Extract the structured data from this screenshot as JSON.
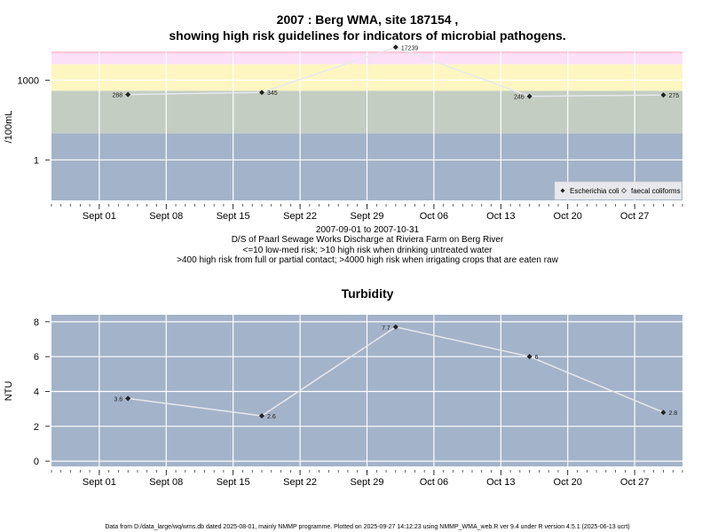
{
  "chart_data": [
    {
      "type": "line",
      "title": "2007 : Berg WMA, site 187154 ,",
      "subtitle": "showing high risk guidelines for indicators of microbial pathogens.",
      "ylabel": "/100mL",
      "y_scale": "log",
      "ylim": [
        0.03,
        12000
      ],
      "xlim": [
        "2007-08-27",
        "2007-11-01"
      ],
      "x_tick_labels": [
        "Sept 01",
        "Sept 08",
        "Sept 15",
        "Sept 22",
        "Sept 29",
        "Oct 06",
        "Oct 13",
        "Oct 20",
        "Oct 27"
      ],
      "x_ticks": [
        "2007-09-01",
        "2007-09-08",
        "2007-09-15",
        "2007-09-22",
        "2007-09-29",
        "2007-10-06",
        "2007-10-13",
        "2007-10-20",
        "2007-10-27"
      ],
      "y_tick_labels": [
        "1",
        "1000"
      ],
      "y_ticks": [
        1,
        1000
      ],
      "risk_bands": [
        {
          "from": 0.03,
          "to": 10,
          "color": "#a3b3c9"
        },
        {
          "from": 10,
          "to": 400,
          "color": "#c3cdc2"
        },
        {
          "from": 400,
          "to": 4000,
          "color": "#fdf6c1"
        },
        {
          "from": 4000,
          "to": 10000,
          "color": "#fce0f8"
        },
        {
          "from": 10000,
          "to": 12000,
          "color": "#fbc7d6"
        }
      ],
      "series": [
        {
          "name": "Escherichia coli",
          "marker": "filled-diamond",
          "color": "#e8e8ec",
          "points": [
            {
              "x": "2007-09-04",
              "y": 288,
              "label": "288"
            },
            {
              "x": "2007-09-18",
              "y": 345,
              "label": "345"
            },
            {
              "x": "2007-10-02",
              "y": 17239,
              "label": "17239"
            },
            {
              "x": "2007-10-16",
              "y": 246,
              "label": "246"
            },
            {
              "x": "2007-10-30",
              "y": 275,
              "label": "275"
            }
          ]
        }
      ],
      "legend": {
        "position": "bottom-right",
        "entries": [
          {
            "label": "Escherichia coli",
            "marker": "filled-diamond",
            "italic": true
          },
          {
            "label": "faecal coliforms",
            "marker": "open-diamond",
            "italic": false
          }
        ]
      },
      "caption": [
        "2007-09-01 to 2007-10-31",
        "D/S of Paarl Sewage Works Discharge at Riviera Farm on Berg River",
        "<=10 low-med risk; >10 high risk when drinking untreated water",
        ">400 high risk from full or partial contact; >4000 high risk when irrigating crops that are eaten raw"
      ]
    },
    {
      "type": "line",
      "title": "Turbidity",
      "ylabel": "NTU",
      "ylim": [
        -0.3,
        8.4
      ],
      "xlim": [
        "2007-08-27",
        "2007-11-01"
      ],
      "x_tick_labels": [
        "Sept 01",
        "Sept 08",
        "Sept 15",
        "Sept 22",
        "Sept 29",
        "Oct 06",
        "Oct 13",
        "Oct 20",
        "Oct 27"
      ],
      "x_ticks": [
        "2007-09-01",
        "2007-09-08",
        "2007-09-15",
        "2007-09-22",
        "2007-09-29",
        "2007-10-06",
        "2007-10-13",
        "2007-10-20",
        "2007-10-27"
      ],
      "y_tick_labels": [
        "0",
        "2",
        "4",
        "6",
        "8"
      ],
      "y_ticks": [
        0,
        2,
        4,
        6,
        8
      ],
      "series": [
        {
          "marker": "filled-diamond",
          "color": "#e8e8ec",
          "points": [
            {
              "x": "2007-09-04",
              "y": 3.6,
              "label": "3.6"
            },
            {
              "x": "2007-09-18",
              "y": 2.6,
              "label": "2.6"
            },
            {
              "x": "2007-10-02",
              "y": 7.7,
              "label": "7.7"
            },
            {
              "x": "2007-10-16",
              "y": 6,
              "label": "6"
            },
            {
              "x": "2007-10-30",
              "y": 2.8,
              "label": "2.8"
            }
          ]
        }
      ],
      "background": "#a3b3c9"
    }
  ],
  "footer": "Data from D:/data_large/wq/wms.db dated 2025-08-01, mainly NMMP programme. Plotted on 2025-09-27 14:12:23 using NMMP_WMA_web.R ver 9.4 under R version 4.5.1 (2025-06-13 ucrt)"
}
